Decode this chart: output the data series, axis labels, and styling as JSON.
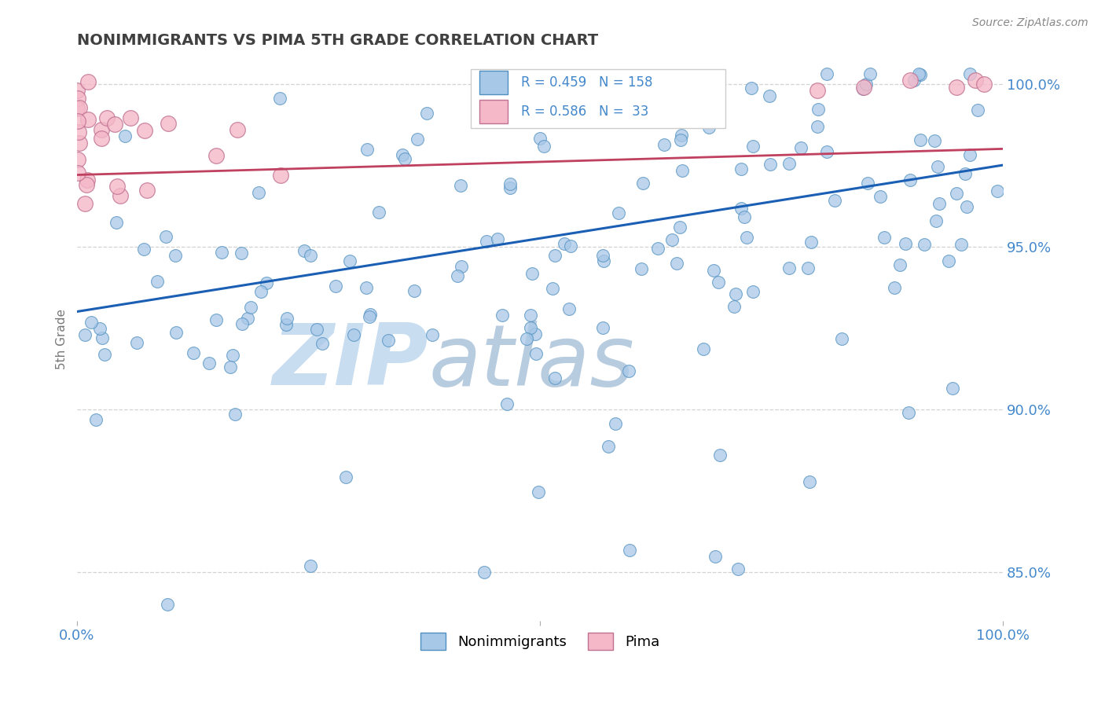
{
  "title": "NONIMMIGRANTS VS PIMA 5TH GRADE CORRELATION CHART",
  "source_text": "Source: ZipAtlas.com",
  "ylabel": "5th Grade",
  "watermark_zip": "ZIP",
  "watermark_atlas": "atlas",
  "legend_blue_label": "Nonimmigrants",
  "legend_pink_label": "Pima",
  "blue_R": 0.459,
  "blue_N": 158,
  "pink_R": 0.586,
  "pink_N": 33,
  "blue_color": "#a8c8e8",
  "blue_line_color": "#1a5fb4",
  "pink_color": "#f4b8c8",
  "pink_line_color": "#c04060",
  "blue_edge_color": "#5090c0",
  "pink_edge_color": "#c07090",
  "background_color": "#ffffff",
  "grid_color": "#c8c8c8",
  "title_color": "#404040",
  "axis_color": "#4488cc",
  "watermark_color": "#c8ddf0",
  "watermark_color2": "#b8cce0",
  "figwidth": 14.06,
  "figheight": 8.92,
  "dpi": 100
}
